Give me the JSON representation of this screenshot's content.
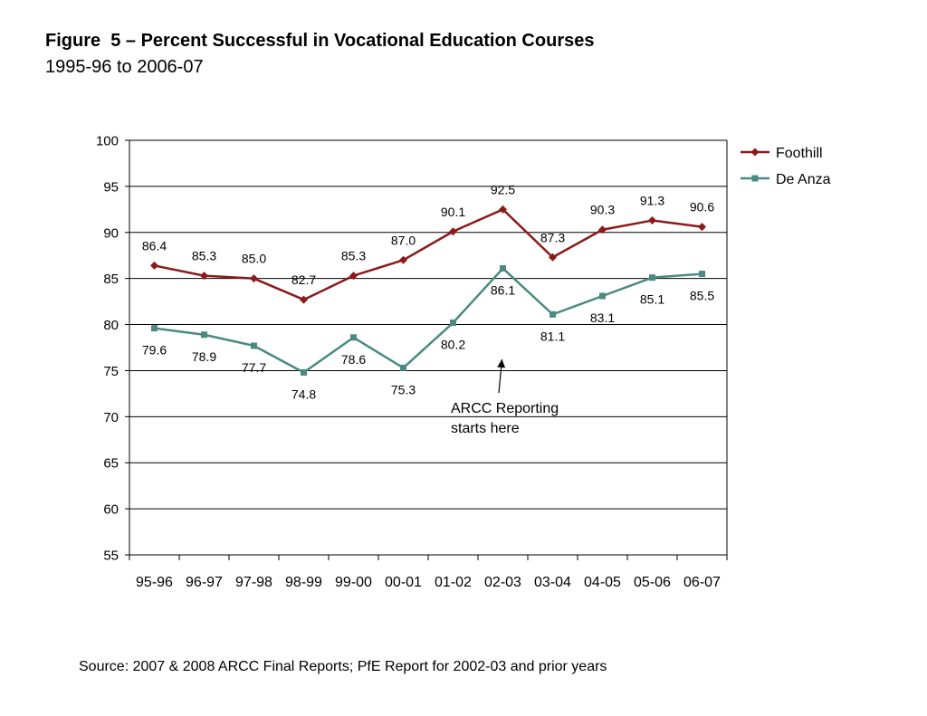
{
  "figure": {
    "title": "Figure  5 – Percent Successful in Vocational Education Courses",
    "subtitle": "1995-96 to 2006-07",
    "source": "Source: 2007 & 2008 ARCC Final Reports; PfE Report for 2002-03 and prior years"
  },
  "chart_data": {
    "type": "line",
    "title": "",
    "xlabel": "",
    "ylabel": "",
    "categories": [
      "95-96",
      "96-97",
      "97-98",
      "98-99",
      "99-00",
      "00-01",
      "01-02",
      "02-03",
      "03-04",
      "04-05",
      "05-06",
      "06-07"
    ],
    "ylim": [
      55,
      100
    ],
    "yticks": [
      55,
      60,
      65,
      70,
      75,
      80,
      85,
      90,
      95,
      100
    ],
    "ytick_labels": [
      "55",
      "60",
      "65",
      "70",
      "75",
      "80",
      "85",
      "90",
      "95",
      "100"
    ],
    "grid": "horizontal",
    "legend_position": "right",
    "series": [
      {
        "name": "Foothill",
        "color": "#8b1a1a",
        "marker": "diamond",
        "values": [
          86.4,
          85.3,
          85.0,
          82.7,
          85.3,
          87.0,
          90.1,
          92.5,
          87.3,
          90.3,
          91.3,
          90.6
        ],
        "labels": [
          "86.4",
          "85.3",
          "85.0",
          "82.7",
          "85.3",
          "87.0",
          "90.1",
          "92.5",
          "87.3",
          "90.3",
          "91.3",
          "90.6"
        ]
      },
      {
        "name": "De Anza",
        "color": "#4a8a80",
        "marker": "square",
        "values": [
          79.6,
          78.9,
          77.7,
          74.8,
          78.6,
          75.3,
          80.2,
          86.1,
          81.1,
          83.1,
          85.1,
          85.5
        ],
        "labels": [
          "79.6",
          "78.9",
          "77.7",
          "74.8",
          "78.6",
          "75.3",
          "80.2",
          "86.1",
          "81.1",
          "83.1",
          "85.1",
          "85.5"
        ]
      }
    ],
    "annotations": [
      {
        "text_lines": [
          "ARCC Reporting",
          "starts here"
        ],
        "arrow_to_category": "02-03"
      }
    ]
  }
}
